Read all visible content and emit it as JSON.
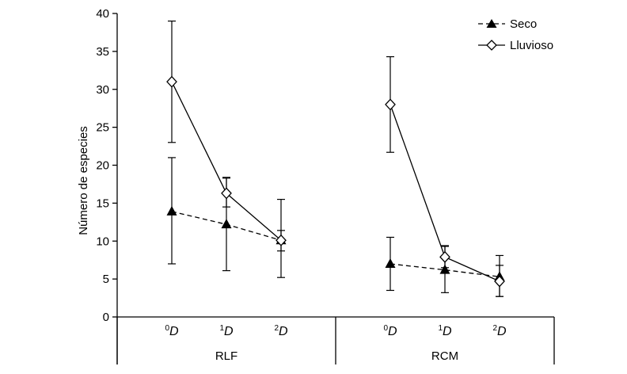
{
  "chart_data": {
    "type": "line",
    "ylabel": "Número de especies",
    "ylim": [
      0,
      40
    ],
    "yticks": [
      0,
      5,
      10,
      15,
      20,
      25,
      30,
      35,
      40
    ],
    "groups": [
      {
        "label": "RLF",
        "categories": [
          {
            "sup": "0",
            "base": "D"
          },
          {
            "sup": "1",
            "base": "D"
          },
          {
            "sup": "2",
            "base": "D"
          }
        ]
      },
      {
        "label": "RCM",
        "categories": [
          {
            "sup": "0",
            "base": "D"
          },
          {
            "sup": "1",
            "base": "D"
          },
          {
            "sup": "2",
            "base": "D"
          }
        ]
      }
    ],
    "series": [
      {
        "name": "Seco",
        "marker": "filled-triangle",
        "line_style": "dashed",
        "color": "#000000",
        "groups": [
          {
            "values": [
              13.9,
              12.2,
              10.1
            ],
            "err_low": [
              7.0,
              6.1,
              8.7
            ],
            "err_high": [
              21.0,
              18.3,
              11.4
            ]
          },
          {
            "values": [
              7.0,
              6.2,
              5.3
            ],
            "err_low": [
              3.5,
              3.2,
              2.7
            ],
            "err_high": [
              10.5,
              9.3,
              8.1
            ]
          }
        ]
      },
      {
        "name": "Lluvioso",
        "marker": "open-diamond",
        "line_style": "solid",
        "color": "#000000",
        "groups": [
          {
            "values": [
              31.0,
              16.3,
              10.1
            ],
            "err_low": [
              23.0,
              14.5,
              5.2
            ],
            "err_high": [
              39.0,
              18.4,
              15.5
            ]
          },
          {
            "values": [
              28.0,
              7.9,
              4.7
            ],
            "err_low": [
              21.7,
              6.5,
              2.7
            ],
            "err_high": [
              34.3,
              9.4,
              6.8
            ]
          }
        ]
      }
    ],
    "legend_position": "top-right",
    "grid": false
  }
}
